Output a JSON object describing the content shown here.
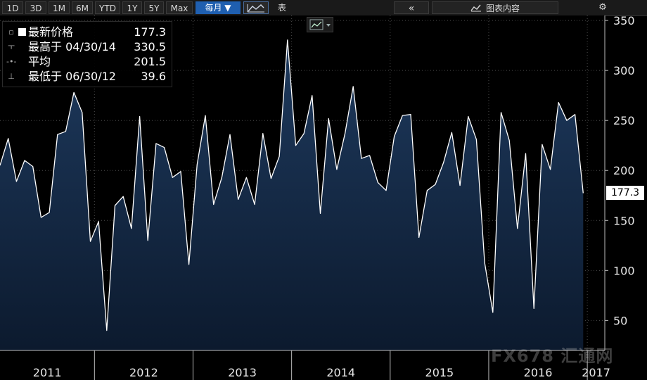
{
  "toolbar": {
    "ranges": [
      "1D",
      "3D",
      "1M",
      "6M",
      "YTD",
      "1Y",
      "5Y",
      "Max"
    ],
    "frequency": "每月 ▼",
    "table_label": "表",
    "collapse_icon": "«",
    "chart_content_label": "图表内容",
    "settings_icon": "⚙"
  },
  "legend": {
    "last": {
      "label": "最新价格",
      "value": "177.3"
    },
    "high": {
      "label": "最高于 04/30/14",
      "value": "330.5"
    },
    "avg": {
      "label": "平均",
      "value": "201.5"
    },
    "low": {
      "label": "最低于 06/30/12",
      "value": "39.6"
    }
  },
  "last_price_tag": "177.3",
  "watermark": "FX678 汇通网",
  "colors": {
    "background": "#000000",
    "line": "#ffffff",
    "fill_top": "#1e3a5e",
    "fill_bottom": "#0c1a2e",
    "accent": "#1f5fb0"
  },
  "chart_data": {
    "type": "area",
    "y_ticks": [
      50,
      100,
      150,
      200,
      250,
      300,
      350
    ],
    "ylim": [
      20,
      355
    ],
    "x_labels": [
      "2011",
      "2012",
      "2013",
      "2014",
      "2015",
      "2016",
      "2017"
    ],
    "grid": true,
    "legend_position": "top-left",
    "series": [
      {
        "values": [
          205,
          232,
          189,
          210,
          204,
          153,
          158,
          236,
          239,
          278,
          258,
          129,
          149,
          40,
          165,
          174,
          142,
          254,
          130,
          227,
          223,
          193,
          199,
          106,
          206,
          255,
          166,
          193,
          236,
          171,
          193,
          166,
          237,
          192,
          214,
          330.5,
          225,
          237,
          275,
          157,
          252,
          201,
          237,
          284,
          212,
          215,
          188,
          180,
          234,
          255,
          256,
          133,
          180,
          186,
          208,
          238,
          185,
          254,
          231,
          108,
          58,
          258,
          230,
          142,
          217,
          62,
          226,
          201,
          268,
          250,
          256,
          177.3
        ]
      }
    ]
  }
}
